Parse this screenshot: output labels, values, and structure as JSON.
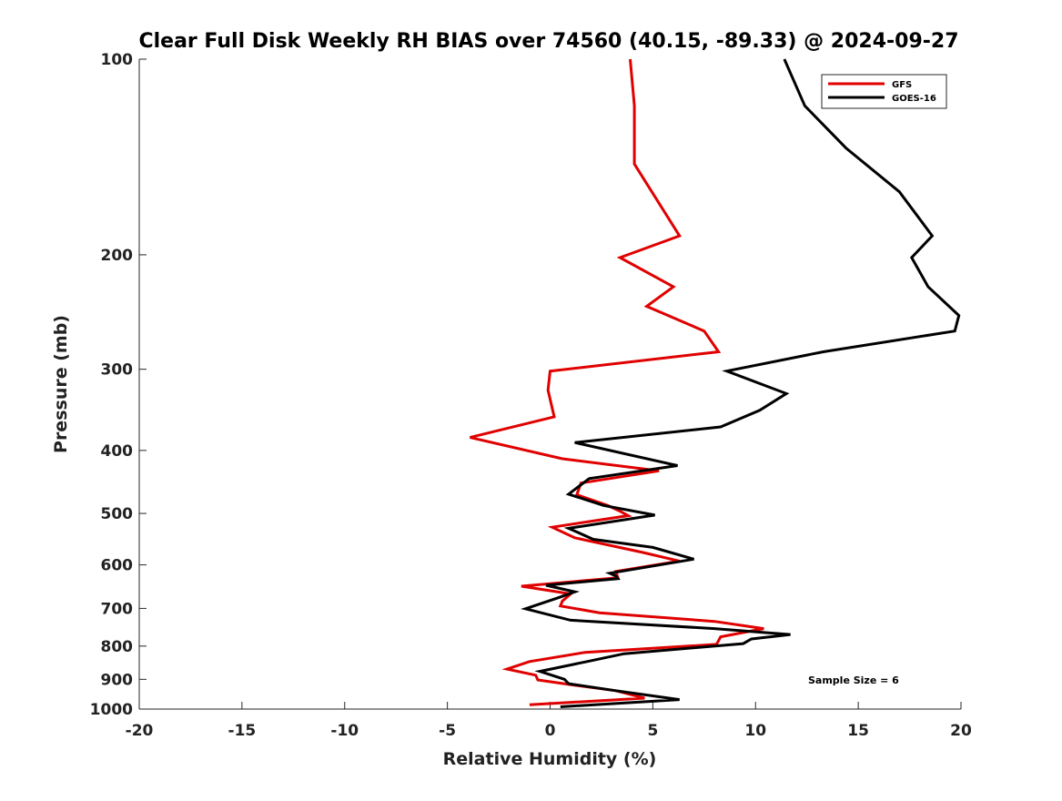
{
  "chart_data": {
    "type": "line",
    "title": "Clear Full Disk Weekly RH BIAS over 74560 (40.15, -89.33) @ 2024-09-27",
    "xlabel": "Relative Humidity (%)",
    "ylabel": "Pressure (mb)",
    "xlim": [
      -20,
      20
    ],
    "ylim": [
      100,
      1000
    ],
    "y_scale": "log",
    "y_reversed": true,
    "x_ticks": [
      -20,
      -15,
      -10,
      -5,
      0,
      5,
      10,
      15,
      20
    ],
    "x_tick_labels": [
      "-20",
      "-15",
      "-10",
      "-5",
      "0",
      "5",
      "10",
      "15",
      "20"
    ],
    "y_ticks": [
      100,
      200,
      300,
      400,
      500,
      600,
      700,
      800,
      900,
      1000
    ],
    "y_tick_labels": [
      "100",
      "200",
      "300",
      "400",
      "500",
      "600",
      "700",
      "800",
      "900",
      "1000"
    ],
    "grid": false,
    "legend_position": "top-right",
    "annotation": "Sample Size = 6",
    "series": [
      {
        "name": "GFS",
        "color": "#e00000",
        "x": [
          3.9,
          4.1,
          4.1,
          6.3,
          3.4,
          6.0,
          4.7,
          7.5,
          8.2,
          0.0,
          -0.1,
          0.2,
          -3.9,
          0.6,
          5.3,
          1.5,
          1.3,
          2.8,
          3.4,
          3.8,
          0.1,
          1.2,
          4.5,
          6.3,
          3.2,
          3.3,
          -1.4,
          1.0,
          0.6,
          0.5,
          2.4,
          8.0,
          10.4,
          8.3,
          8.1,
          1.7,
          -1.0,
          -2.1,
          -0.7,
          -0.6,
          1.1,
          3.2,
          4.6,
          -1.0
        ],
        "y": [
          100,
          118,
          145,
          187,
          202,
          224,
          240,
          262,
          282,
          302,
          323,
          355,
          382,
          412,
          430,
          449,
          468,
          486,
          496,
          504,
          525,
          545,
          574,
          592,
          614,
          628,
          647,
          665,
          682,
          694,
          711,
          733,
          752,
          774,
          795,
          818,
          845,
          868,
          887,
          902,
          918,
          937,
          962,
          985
        ]
      },
      {
        "name": "GOES-16",
        "color": "#000000",
        "x": [
          11.4,
          12.4,
          14.4,
          17.0,
          18.6,
          17.6,
          18.4,
          19.9,
          19.7,
          13.3,
          8.6,
          11.5,
          10.2,
          8.3,
          1.2,
          6.2,
          1.9,
          0.9,
          2.6,
          5.1,
          0.9,
          2.1,
          5.0,
          7.0,
          2.9,
          3.2,
          3.3,
          -0.2,
          1.2,
          0.4,
          -1.2,
          1.0,
          8.0,
          11.7,
          9.8,
          9.4,
          3.6,
          1.8,
          -0.5,
          0.7,
          0.9,
          3.2,
          6.3,
          0.5
        ],
        "y": [
          100,
          118,
          137,
          160,
          187,
          202,
          224,
          248,
          262,
          282,
          302,
          327,
          347,
          368,
          389,
          422,
          442,
          467,
          486,
          503,
          527,
          548,
          564,
          588,
          618,
          624,
          630,
          645,
          660,
          674,
          701,
          730,
          752,
          768,
          780,
          793,
          822,
          845,
          875,
          900,
          914,
          937,
          967,
          992
        ]
      }
    ]
  }
}
